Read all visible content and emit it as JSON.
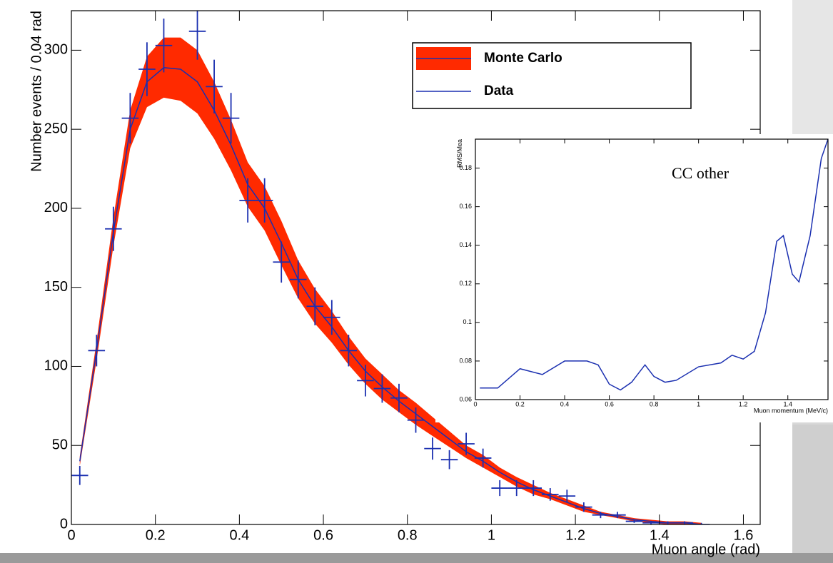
{
  "chart_data": [
    {
      "type": "line",
      "x_label": "Muon angle (rad)",
      "y_label": "Number events / 0.04 rad",
      "xlim": [
        0,
        1.64
      ],
      "ylim": [
        0,
        325
      ],
      "xticks": [
        0,
        0.2,
        0.4,
        0.6,
        0.8,
        1,
        1.2,
        1.4,
        1.6
      ],
      "yticks": [
        0,
        50,
        100,
        150,
        200,
        250,
        300
      ],
      "legend": "top-right",
      "x": [
        0.02,
        0.06,
        0.1,
        0.14,
        0.18,
        0.22,
        0.26,
        0.3,
        0.34,
        0.38,
        0.42,
        0.46,
        0.5,
        0.54,
        0.58,
        0.62,
        0.66,
        0.7,
        0.74,
        0.78,
        0.82,
        0.86,
        0.9,
        0.94,
        0.98,
        1.02,
        1.06,
        1.1,
        1.14,
        1.18,
        1.22,
        1.26,
        1.3,
        1.34,
        1.38,
        1.42,
        1.46,
        1.5
      ],
      "series": [
        {
          "name": "Monte Carlo",
          "color": "#ff2a00",
          "low": [
            37,
            104,
            176,
            238,
            264,
            270,
            268,
            260,
            244,
            224,
            201,
            186,
            164,
            143,
            127,
            115,
            101,
            89,
            79,
            71,
            63,
            56,
            49,
            42,
            36,
            30,
            24,
            19,
            16,
            12,
            8,
            6,
            4,
            2,
            1,
            0,
            0,
            0
          ],
          "high": [
            43,
            116,
            194,
            262,
            296,
            308,
            308,
            300,
            280,
            256,
            229,
            214,
            192,
            167,
            149,
            135,
            119,
            105,
            95,
            85,
            77,
            68,
            59,
            50,
            44,
            36,
            30,
            25,
            20,
            16,
            12,
            8,
            6,
            4,
            3,
            2,
            2,
            1
          ]
        },
        {
          "name": "Data",
          "color": "#1a2fb0",
          "values": [
            40,
            110,
            185,
            250,
            280,
            289,
            288,
            280,
            262,
            240,
            215,
            200,
            178,
            155,
            138,
            125,
            110,
            97,
            87,
            78,
            70,
            62,
            54,
            46,
            40,
            33,
            27,
            22,
            18,
            14,
            10,
            7,
            5,
            3,
            2,
            1,
            1,
            0
          ]
        }
      ],
      "points": {
        "color": "#1a2fb0",
        "xerr": 0.02,
        "x": [
          0.02,
          0.06,
          0.1,
          0.14,
          0.18,
          0.22,
          0.3,
          0.34,
          0.38,
          0.42,
          0.46,
          0.5,
          0.54,
          0.58,
          0.62,
          0.66,
          0.7,
          0.74,
          0.78,
          0.82,
          0.86,
          0.9,
          0.94,
          0.98,
          1.02,
          1.06,
          1.1,
          1.14,
          1.18,
          1.22,
          1.26,
          1.3,
          1.34,
          1.38,
          1.42,
          1.46,
          1.5
        ],
        "values": [
          31,
          110,
          187,
          257,
          288,
          303,
          312,
          277,
          257,
          205,
          205,
          166,
          155,
          138,
          131,
          110,
          91,
          86,
          80,
          66,
          48,
          41,
          51,
          42,
          23,
          23,
          23,
          19,
          18,
          11,
          6,
          6,
          2,
          1,
          1,
          1,
          0
        ],
        "yerr": [
          6,
          10,
          14,
          16,
          17,
          17,
          18,
          17,
          16,
          14,
          14,
          13,
          12,
          12,
          11,
          10,
          10,
          9,
          9,
          8,
          7,
          6,
          7,
          6,
          5,
          5,
          5,
          4,
          4,
          3,
          2,
          2,
          1,
          1,
          1,
          1,
          1
        ]
      }
    },
    {
      "type": "line",
      "annotation": "CC other",
      "x_label": "Muon momentum (MeV/c)",
      "y_label": "RMS/Mea",
      "xlim": [
        0,
        1.58
      ],
      "ylim": [
        0.06,
        0.195
      ],
      "xticks": [
        0,
        0.2,
        0.4,
        0.6,
        0.8,
        1,
        1.2,
        1.4
      ],
      "yticks": [
        0.06,
        0.08,
        0.1,
        0.12,
        0.14,
        0.16,
        0.18
      ],
      "x": [
        0.02,
        0.1,
        0.2,
        0.3,
        0.4,
        0.5,
        0.55,
        0.6,
        0.65,
        0.7,
        0.76,
        0.8,
        0.85,
        0.9,
        1.0,
        1.1,
        1.15,
        1.2,
        1.25,
        1.3,
        1.35,
        1.38,
        1.42,
        1.45,
        1.5,
        1.55,
        1.58
      ],
      "series": [
        {
          "color": "#1a2fb0",
          "values": [
            0.066,
            0.066,
            0.076,
            0.073,
            0.08,
            0.08,
            0.078,
            0.068,
            0.065,
            0.069,
            0.078,
            0.072,
            0.069,
            0.07,
            0.077,
            0.079,
            0.083,
            0.081,
            0.085,
            0.105,
            0.142,
            0.145,
            0.125,
            0.121,
            0.145,
            0.185,
            0.195
          ]
        }
      ]
    }
  ]
}
